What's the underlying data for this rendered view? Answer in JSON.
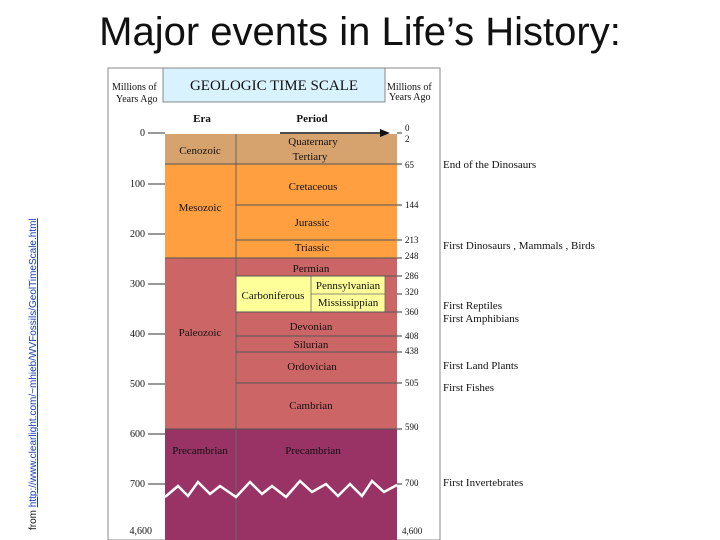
{
  "slide_title": "Major events in Life’s History:",
  "source_prefix": "from ",
  "source_link": "http://www.clearlight.com/~mhieb/WVFossils/GeolTimeScale.html",
  "scale": {
    "header_title": "GEOLOGIC TIME SCALE",
    "left_units": [
      "Millions of",
      "Years Ago"
    ],
    "right_units": [
      "Millions of",
      "Years Ago"
    ],
    "col_era": "Era",
    "col_period": "Period",
    "left_ticks": [
      "0",
      "100",
      "200",
      "300",
      "400",
      "500",
      "600",
      "700",
      "4,600"
    ],
    "eras": [
      "Cenozoic",
      "Mesozoic",
      "Paleozoic",
      "Precambrian"
    ],
    "periods": {
      "quaternary": "Quaternary",
      "tertiary": "Tertiary",
      "cretaceous": "Cretaceous",
      "jurassic": "Jurassic",
      "triassic": "Triassic",
      "permian": "Permian",
      "carboniferous": "Carboniferous",
      "pennsylvanian": "Pennsylvanian",
      "mississippian": "Mississippian",
      "devonian": "Devonian",
      "silurian": "Silurian",
      "ordovician": "Ordovician",
      "cambrian": "Cambrian",
      "precambrian": "Precambrian"
    },
    "right_ticks": [
      "0",
      "2",
      "65",
      "144",
      "213",
      "248",
      "286",
      "320",
      "360",
      "408",
      "438",
      "505",
      "590",
      "700",
      "4,600"
    ],
    "events": [
      "End of the Dinosaurs",
      "First Dinosaurs , Mammals , Birds",
      "First Reptiles",
      "First Amphibians",
      "First Land Plants",
      "First Fishes",
      "First Invertebrates"
    ],
    "colors": {
      "cenozoic": "#d6a36e",
      "mesozoic": "#ff9f40",
      "paleozoic": "#cc6666",
      "carboniferous": "#ffff99",
      "precambrian": "#993366",
      "header": "#d9f2ff"
    }
  }
}
